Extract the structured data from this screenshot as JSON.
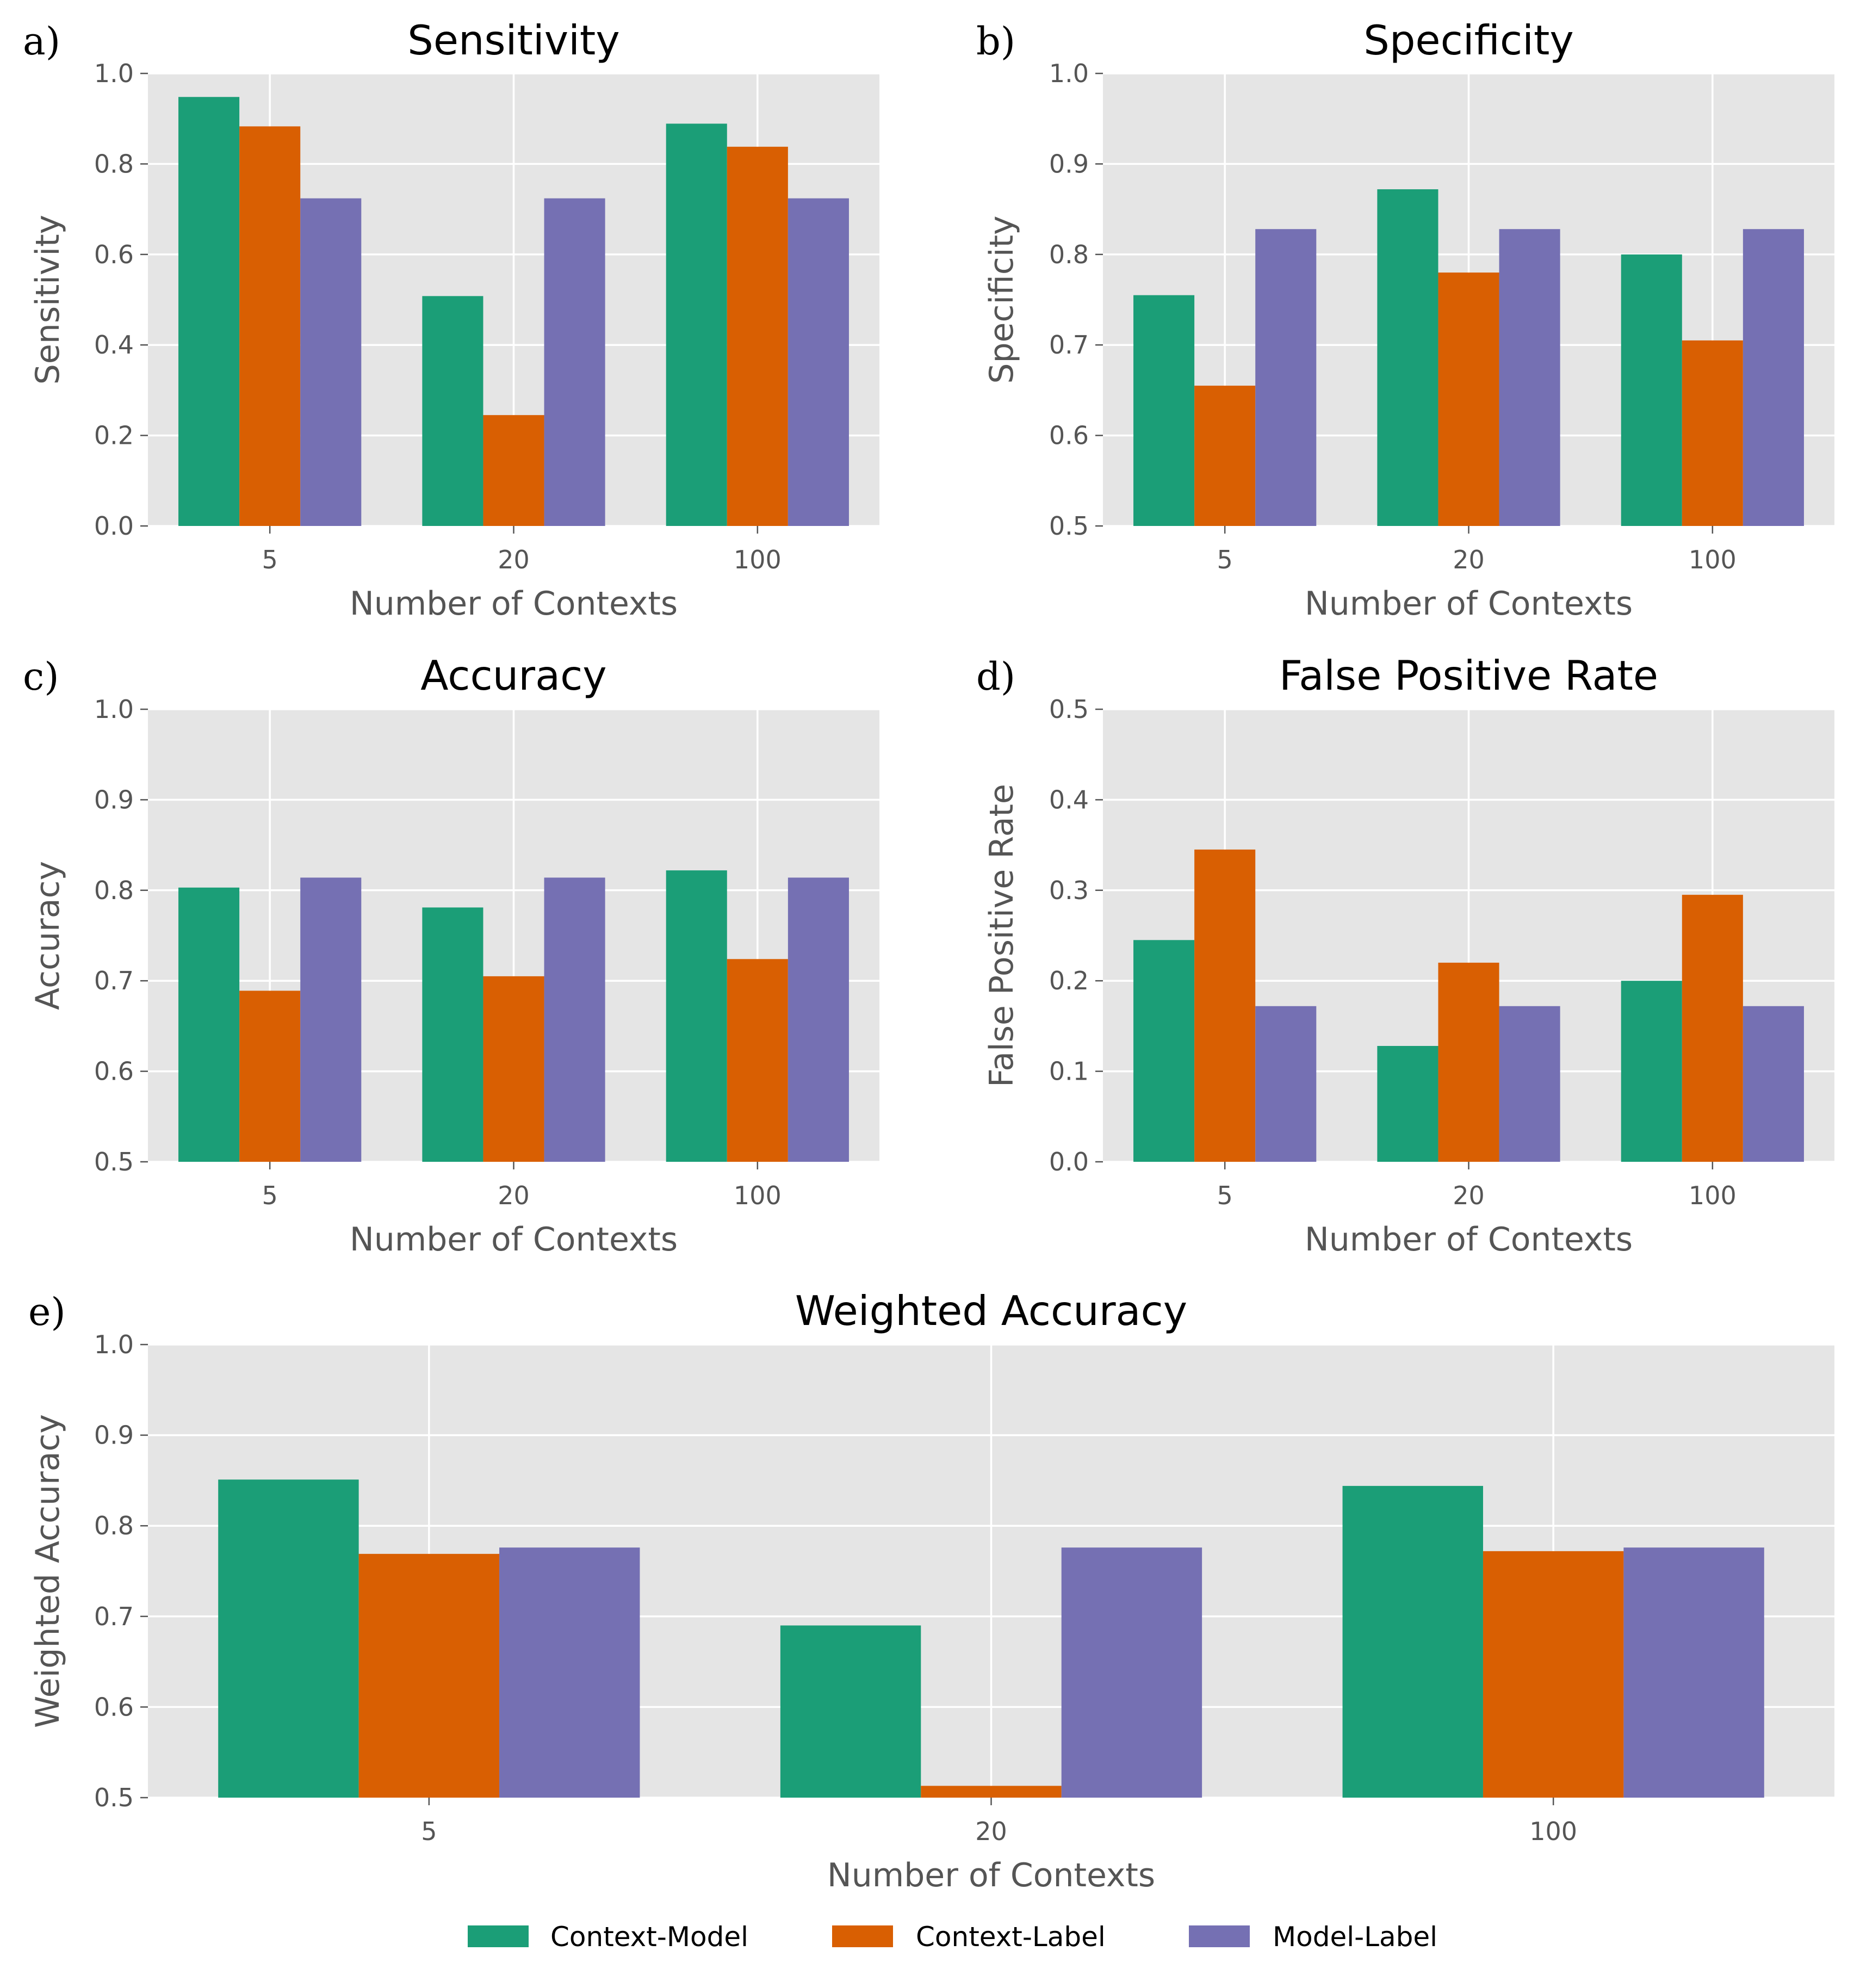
{
  "colors": {
    "Context-Model": "#1b9e77",
    "Context-Label": "#d95f02",
    "Model-Label": "#7570b3",
    "panel_background": "#e5e5e5",
    "grid": "#ffffff"
  },
  "legend": {
    "placement": "bottom-center",
    "entries": [
      "Context-Model",
      "Context-Label",
      "Model-Label"
    ]
  },
  "chart_data": [
    {
      "id": "a",
      "panel_label": "a)",
      "type": "bar",
      "title": "Sensitivity",
      "xlabel": "Number of Contexts",
      "ylabel": "Sensitivity",
      "categories": [
        "5",
        "20",
        "100"
      ],
      "ylim": [
        0.0,
        1.0
      ],
      "yticks": [
        "0.0",
        "0.2",
        "0.4",
        "0.6",
        "0.8",
        "1.0"
      ],
      "grid": true,
      "series": [
        {
          "name": "Context-Model",
          "values": [
            0.948,
            0.508,
            0.889
          ]
        },
        {
          "name": "Context-Label",
          "values": [
            0.883,
            0.245,
            0.838
          ]
        },
        {
          "name": "Model-Label",
          "values": [
            0.724,
            0.724,
            0.724
          ]
        }
      ]
    },
    {
      "id": "b",
      "panel_label": "b)",
      "type": "bar",
      "title": "Specificity",
      "xlabel": "Number of Contexts",
      "ylabel": "Specificity",
      "categories": [
        "5",
        "20",
        "100"
      ],
      "ylim": [
        0.5,
        1.0
      ],
      "yticks": [
        "0.5",
        "0.6",
        "0.7",
        "0.8",
        "0.9",
        "1.0"
      ],
      "grid": true,
      "series": [
        {
          "name": "Context-Model",
          "values": [
            0.755,
            0.872,
            0.8
          ]
        },
        {
          "name": "Context-Label",
          "values": [
            0.655,
            0.78,
            0.705
          ]
        },
        {
          "name": "Model-Label",
          "values": [
            0.828,
            0.828,
            0.828
          ]
        }
      ]
    },
    {
      "id": "c",
      "panel_label": "c)",
      "type": "bar",
      "title": "Accuracy",
      "xlabel": "Number of Contexts",
      "ylabel": "Accuracy",
      "categories": [
        "5",
        "20",
        "100"
      ],
      "ylim": [
        0.5,
        1.0
      ],
      "yticks": [
        "0.5",
        "0.6",
        "0.7",
        "0.8",
        "0.9",
        "1.0"
      ],
      "grid": true,
      "series": [
        {
          "name": "Context-Model",
          "values": [
            0.803,
            0.781,
            0.822
          ]
        },
        {
          "name": "Context-Label",
          "values": [
            0.689,
            0.705,
            0.724
          ]
        },
        {
          "name": "Model-Label",
          "values": [
            0.814,
            0.814,
            0.814
          ]
        }
      ]
    },
    {
      "id": "d",
      "panel_label": "d)",
      "type": "bar",
      "title": "False Positive Rate",
      "xlabel": "Number of Contexts",
      "ylabel": "False Positive Rate",
      "categories": [
        "5",
        "20",
        "100"
      ],
      "ylim": [
        0.0,
        0.5
      ],
      "yticks": [
        "0.0",
        "0.1",
        "0.2",
        "0.3",
        "0.4",
        "0.5"
      ],
      "grid": true,
      "series": [
        {
          "name": "Context-Model",
          "values": [
            0.245,
            0.128,
            0.2
          ]
        },
        {
          "name": "Context-Label",
          "values": [
            0.345,
            0.22,
            0.295
          ]
        },
        {
          "name": "Model-Label",
          "values": [
            0.172,
            0.172,
            0.172
          ]
        }
      ]
    },
    {
      "id": "e",
      "panel_label": "e)",
      "type": "bar",
      "title": "Weighted Accuracy",
      "xlabel": "Number of Contexts",
      "ylabel": "Weighted Accuracy",
      "categories": [
        "5",
        "20",
        "100"
      ],
      "ylim": [
        0.5,
        1.0
      ],
      "yticks": [
        "0.5",
        "0.6",
        "0.7",
        "0.8",
        "0.9",
        "1.0"
      ],
      "grid": true,
      "series": [
        {
          "name": "Context-Model",
          "values": [
            0.851,
            0.69,
            0.844
          ]
        },
        {
          "name": "Context-Label",
          "values": [
            0.769,
            0.513,
            0.772
          ]
        },
        {
          "name": "Model-Label",
          "values": [
            0.776,
            0.776,
            0.776
          ]
        }
      ]
    }
  ]
}
